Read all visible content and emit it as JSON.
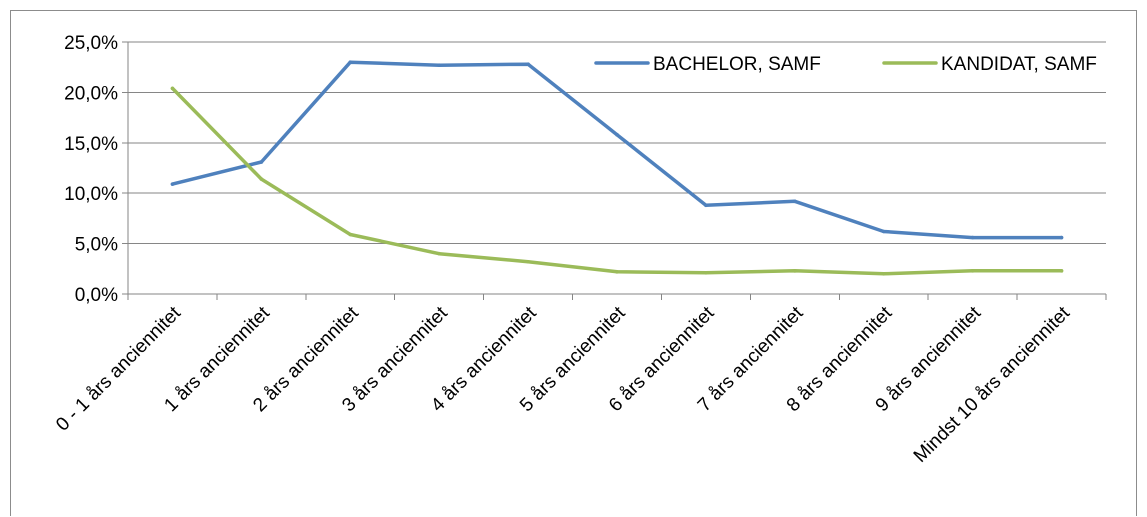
{
  "chart_data": {
    "type": "line",
    "title": "",
    "xlabel": "",
    "ylabel": "",
    "categories": [
      "0 - 1 års anciennitet",
      "1 års anciennitet",
      "2 års anciennitet",
      "3 års anciennitet",
      "4 års anciennitet",
      "5 års anciennitet",
      "6 års anciennitet",
      "7 års anciennitet",
      "8 års anciennitet",
      "9 års anciennitet",
      "Mindst 10 års anciennitet"
    ],
    "series": [
      {
        "name": "BACHELOR, SAMF",
        "color": "#4f81bd",
        "values": [
          10.9,
          13.1,
          23.0,
          22.7,
          22.8,
          15.8,
          8.8,
          9.2,
          6.2,
          5.6,
          5.6
        ]
      },
      {
        "name": "KANDIDAT, SAMF",
        "color": "#9bbb59",
        "values": [
          20.4,
          11.4,
          5.9,
          4.0,
          3.2,
          2.2,
          2.1,
          2.3,
          2.0,
          2.3,
          2.3
        ]
      }
    ],
    "ylim": [
      0,
      25
    ],
    "yticks": [
      0,
      5,
      10,
      15,
      20,
      25
    ],
    "ytick_labels": [
      "0,0%",
      "5,0%",
      "10,0%",
      "15,0%",
      "20,0%",
      "25,0%"
    ],
    "grid": true,
    "legend_position": "top-right"
  }
}
